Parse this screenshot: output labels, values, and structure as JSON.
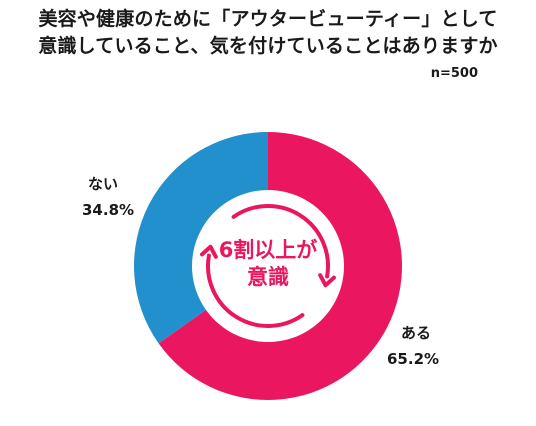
{
  "title_line1": "美容や健康のために「アウタービューティー」として",
  "title_line2": "意識していること、気を付けていることはありますか",
  "sample_size": "n=500",
  "center_line1": "6割以上が",
  "center_line2": "意識",
  "colors": {
    "yes": "#ea1760",
    "no": "#2290cd",
    "accent": "#ea1760"
  },
  "chart_data": {
    "type": "pie",
    "title": "美容や健康のために「アウタービューティー」として意識していること、気を付けていることはありますか",
    "series": [
      {
        "name": "ある",
        "value": 65.2,
        "label": "65.2%"
      },
      {
        "name": "ない",
        "value": 34.8,
        "label": "34.8%"
      }
    ],
    "donut": true,
    "legend": "none"
  }
}
